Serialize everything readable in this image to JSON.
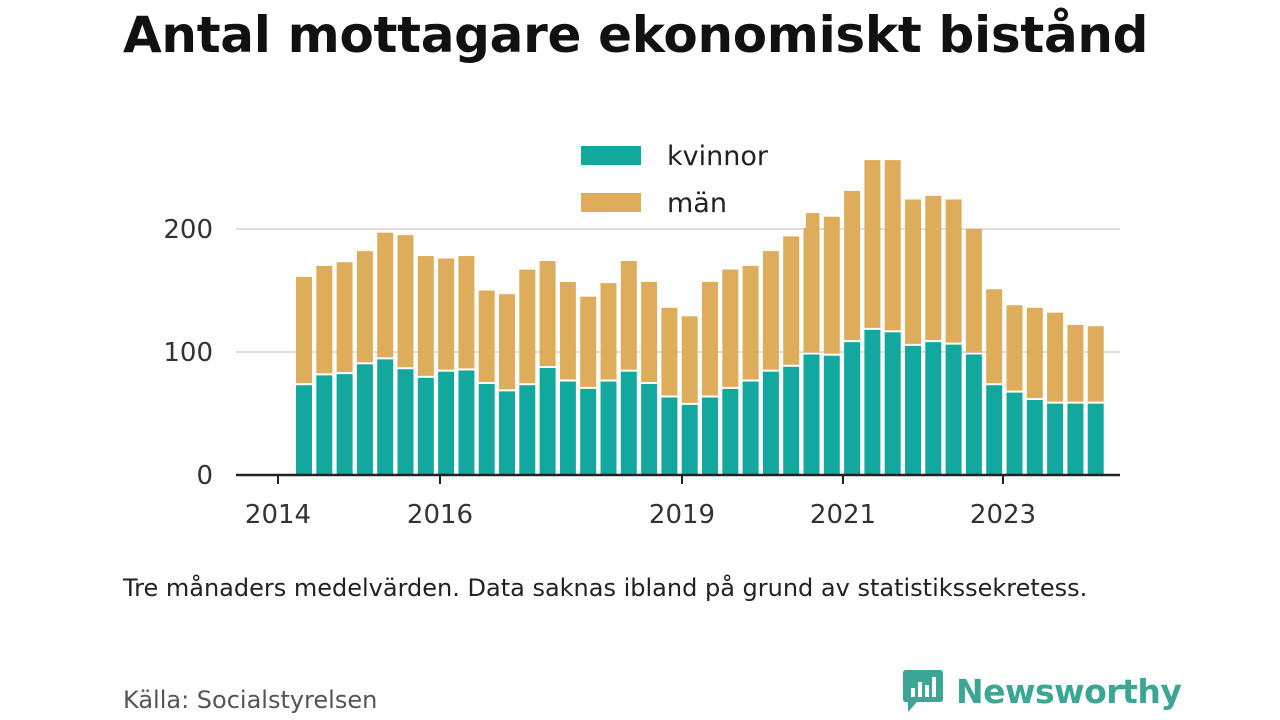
{
  "title": "Antal mottagare ekonomiskt bistånd",
  "note": "Tre månaders medelvärden. Data saknas ibland på grund av statistikssekretess.",
  "source": "Källa: Socialstyrelsen",
  "brand": {
    "name": "Newsworthy",
    "icon": "newsworthy-logo-icon",
    "color": "#3aa693"
  },
  "chart_data": {
    "type": "bar",
    "stacked": true,
    "x_tick_labels": [
      "2014",
      "2016",
      "2019",
      "2021",
      "2023"
    ],
    "y_ticks": [
      0,
      100,
      200
    ],
    "ylim": [
      0,
      270
    ],
    "grid": true,
    "legend_position": "top-center",
    "categories": [
      "2014 Q2",
      "2014 Q3",
      "2014 Q4",
      "2015 Q1",
      "2015 Q2",
      "2015 Q3",
      "2015 Q4",
      "2016 Q1",
      "2016 Q2",
      "2016 Q3",
      "2016 Q4",
      "2017 Q1",
      "2017 Q2",
      "2017 Q3",
      "2017 Q4",
      "2018 Q1",
      "2018 Q2",
      "2018 Q3",
      "2018 Q4",
      "2019 Q1",
      "2019 Q2",
      "2019 Q3",
      "2019 Q4",
      "2020 Q1",
      "2020 Q2",
      "2020 Q3",
      "2020 Q4",
      "2021 Q1",
      "2021 Q2",
      "2021 Q3",
      "2021 Q4",
      "2022 Q1",
      "2022 Q2",
      "2022 Q3",
      "2022 Q4",
      "2023 Q1",
      "2023 Q2",
      "2023 Q3",
      "2023 Q4",
      "2024 Q1"
    ],
    "series": [
      {
        "name": "kvinnor",
        "color": "#13a89e",
        "values": [
          73,
          81,
          82,
          90,
          94,
          86,
          79,
          84,
          85,
          74,
          68,
          73,
          87,
          76,
          70,
          76,
          84,
          74,
          63,
          57,
          63,
          70,
          76,
          84,
          88,
          98,
          97,
          108,
          118,
          116,
          105,
          108,
          106,
          98,
          73,
          67,
          61,
          58,
          58,
          58
        ]
      },
      {
        "name": "män",
        "color": "#ddad5c",
        "values": [
          88,
          89,
          91,
          92,
          103,
          109,
          99,
          92,
          93,
          76,
          79,
          94,
          87,
          81,
          75,
          80,
          90,
          83,
          73,
          72,
          94,
          97,
          94,
          98,
          106,
          115,
          113,
          123,
          138,
          140,
          119,
          119,
          118,
          102,
          78,
          71,
          75,
          74,
          64,
          63
        ]
      }
    ]
  }
}
